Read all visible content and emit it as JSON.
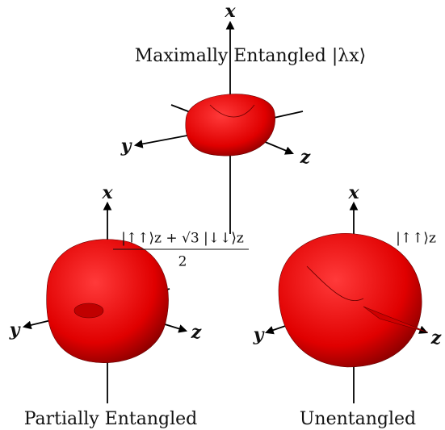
{
  "panels": [
    {
      "title": "Maximally Entangled |λx⟩",
      "axes": {
        "x": "x",
        "y": "y",
        "z": "z"
      }
    },
    {
      "title": "Partially Entangled",
      "axes": {
        "x": "x",
        "y": "y",
        "z": "z"
      },
      "state": {
        "numerator": "|↑↑⟩z + √3 |↓↓⟩z",
        "denominator": "2"
      }
    },
    {
      "title": "Unentangled",
      "axes": {
        "x": "x",
        "y": "y",
        "z": "z"
      },
      "state": {
        "numerator": "|↑↑⟩z"
      }
    }
  ]
}
